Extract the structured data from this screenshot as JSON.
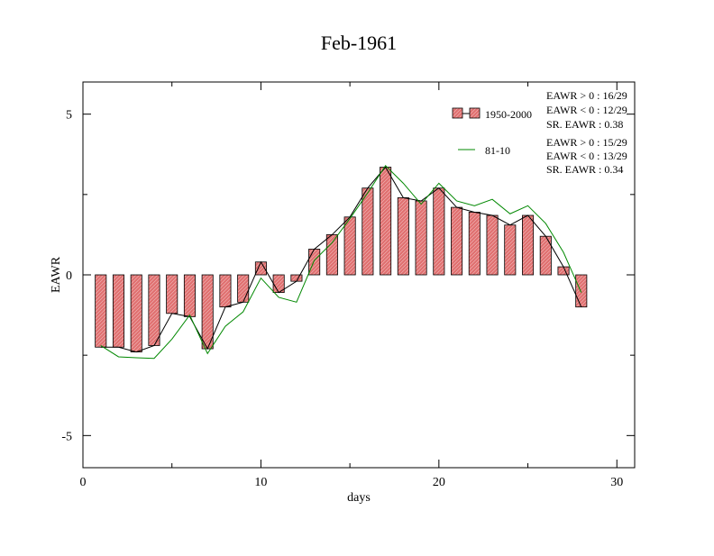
{
  "chart_data": {
    "type": "bar",
    "title": "Feb-1961",
    "xlabel": "days",
    "ylabel": "EAWR",
    "xlim": [
      0,
      31
    ],
    "ylim": [
      -6,
      6
    ],
    "x_ticks": [
      0,
      10,
      20,
      30
    ],
    "y_ticks": [
      -5,
      0,
      5
    ],
    "x_tick_labels": [
      "0",
      "10",
      "20",
      "30"
    ],
    "y_tick_labels": [
      "-5",
      "0",
      "5"
    ],
    "grid": false,
    "legend_position": "top-right",
    "x": [
      1,
      2,
      3,
      4,
      5,
      6,
      7,
      8,
      9,
      10,
      11,
      12,
      13,
      14,
      15,
      16,
      17,
      18,
      19,
      20,
      21,
      22,
      23,
      24,
      25,
      26,
      27,
      28
    ],
    "series": [
      {
        "name": "1950-2000",
        "style": "bar-with-line",
        "bar_color": "#e07070",
        "line_color": "#000000",
        "values": [
          -2.25,
          -2.25,
          -2.4,
          -2.2,
          -1.2,
          -1.3,
          -2.3,
          -1.0,
          -0.85,
          0.4,
          -0.55,
          -0.2,
          0.8,
          1.25,
          1.8,
          2.7,
          3.35,
          2.4,
          2.3,
          2.7,
          2.1,
          1.95,
          1.85,
          1.55,
          1.85,
          1.2,
          0.25,
          -1.0
        ]
      },
      {
        "name": "81-10",
        "style": "line",
        "line_color": "#008800",
        "values": [
          -2.2,
          -2.55,
          -2.58,
          -2.6,
          -2.0,
          -1.25,
          -2.45,
          -1.6,
          -1.15,
          -0.1,
          -0.7,
          -0.85,
          0.45,
          1.0,
          1.75,
          2.55,
          3.4,
          2.85,
          2.2,
          2.85,
          2.3,
          2.15,
          2.35,
          1.9,
          2.15,
          1.6,
          0.7,
          -0.55
        ]
      }
    ],
    "stats": [
      {
        "lines": [
          "EAWR > 0 : 16/29",
          "EAWR < 0 : 12/29",
          "SR. EAWR :  0.38"
        ]
      },
      {
        "lines": [
          "EAWR > 0 : 15/29",
          "EAWR < 0 : 13/29",
          "SR. EAWR :  0.34"
        ]
      }
    ]
  }
}
